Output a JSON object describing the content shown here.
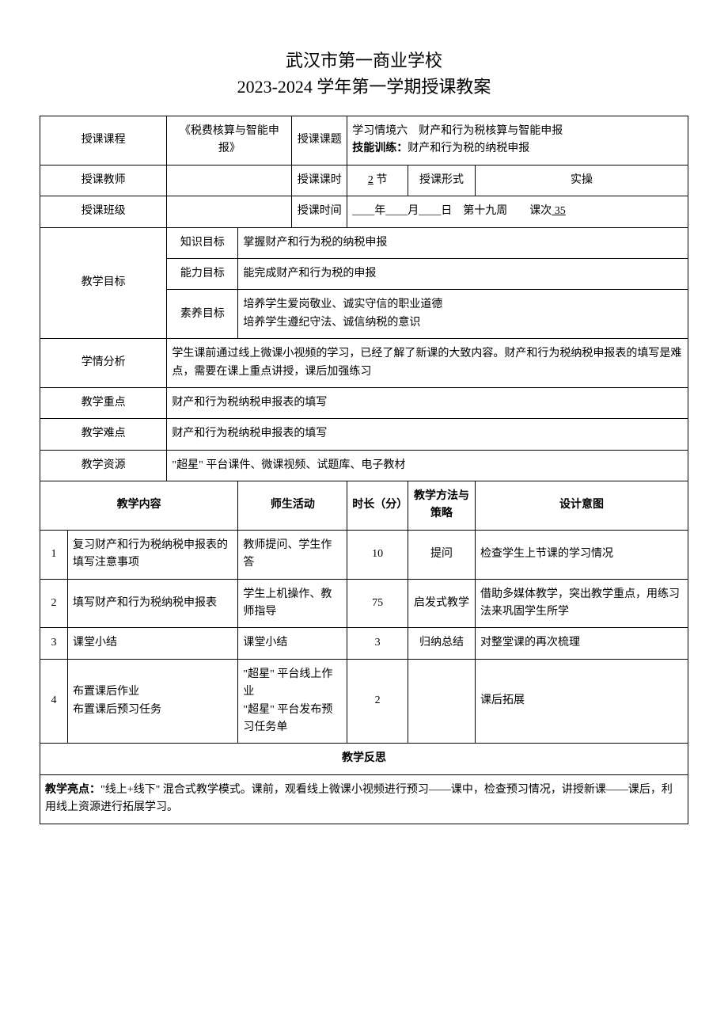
{
  "title": {
    "line1": "武汉市第一商业学校",
    "line2": "2023-2024 学年第一学期授课教案"
  },
  "header": {
    "course_label": "授课课程",
    "course_value": "《税费核算与智能申报》",
    "topic_label": "授课课题",
    "topic_line1": "学习情境六　财产和行为税核算与智能申报",
    "topic_line2_bold": "技能训练：",
    "topic_line2_rest": "财产和行为税的纳税申报",
    "teacher_label": "授课教师",
    "teacher_value": "",
    "hours_label": "授课课时",
    "hours_value_underline": "2",
    "hours_value_suffix": " 节",
    "mode_label": "授课形式",
    "mode_value": "实操",
    "class_label": "授课班级",
    "class_value": "",
    "time_label": "授课时间",
    "time_value": "____年____月____日　第十九周　　课次",
    "time_seq_underline": "  35  "
  },
  "objectives": {
    "main_label": "教学目标",
    "knowledge_label": "知识目标",
    "knowledge_value": "掌握财产和行为税的纳税申报",
    "ability_label": "能力目标",
    "ability_value": "能完成财产和行为税的申报",
    "quality_label": "素养目标",
    "quality_line1": "培养学生爱岗敬业、诚实守信的职业道德",
    "quality_line2": "培养学生遵纪守法、诚信纳税的意识"
  },
  "analysis": {
    "label": "学情分析",
    "value": "学生课前通过线上微课小视频的学习，已经了解了新课的大致内容。财产和行为税纳税申报表的填写是难点，需要在课上重点讲授，课后加强练习"
  },
  "keypoint": {
    "label": "教学重点",
    "value": "财产和行为税纳税申报表的填写"
  },
  "difficulty": {
    "label": "教学难点",
    "value": "财产和行为税纳税申报表的填写"
  },
  "resource": {
    "label": "教学资源",
    "value": "\"超星\" 平台课件、微课视频、试题库、电子教材"
  },
  "activity_header": {
    "col_content": "教学内容",
    "col_activity": "师生活动",
    "col_duration": "时长（分）",
    "col_method": "教学方法与策略",
    "col_intent": "设计意图"
  },
  "activities": [
    {
      "no": "1",
      "content": "复习财产和行为税纳税申报表的填写注意事项",
      "activity": "教师提问、学生作答",
      "duration": "10",
      "method": "提问",
      "intent": "检查学生上节课的学习情况"
    },
    {
      "no": "2",
      "content": "填写财产和行为税纳税申报表",
      "activity": "学生上机操作、教师指导",
      "duration": "75",
      "method": "启发式教学",
      "intent": "借助多媒体教学，突出教学重点，用练习法来巩固学生所学"
    },
    {
      "no": "3",
      "content": "课堂小结",
      "activity": "课堂小结",
      "duration": "3",
      "method": "归纳总结",
      "intent": "对整堂课的再次梳理"
    },
    {
      "no": "4",
      "content": "布置课后作业\n布置课后预习任务",
      "activity": "\"超星\" 平台线上作业\n\"超星\" 平台发布预习任务单",
      "duration": "2",
      "method": "",
      "intent": "课后拓展"
    }
  ],
  "reflection": {
    "title": "教学反思",
    "highlight_label": "教学亮点：",
    "highlight_value": "\"线上+线下\" 混合式教学模式。课前，观看线上微课小视频进行预习——课中，检查预习情况，讲授新课——课后，利用线上资源进行拓展学习。"
  }
}
